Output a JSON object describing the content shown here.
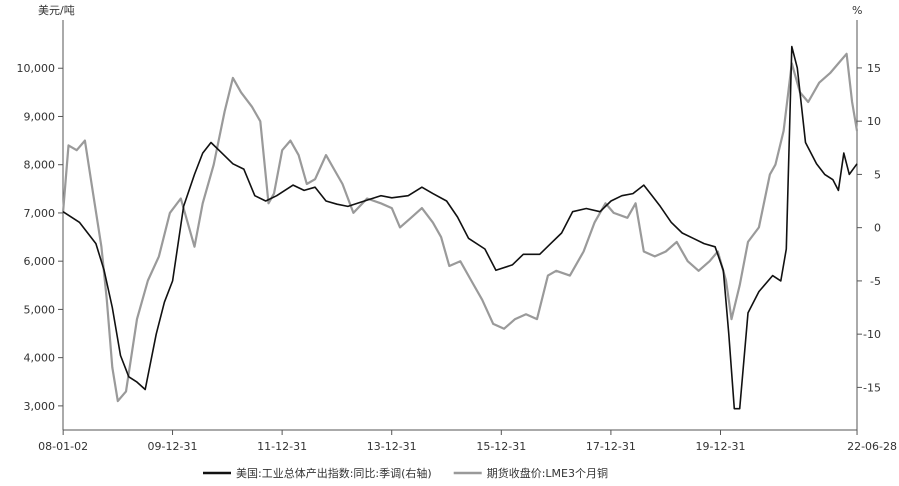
{
  "chart_data": {
    "type": "line",
    "left_axis_unit": "美元/吨",
    "right_axis_unit": "%",
    "x_tick_labels": [
      "08-01-02",
      "09-12-31",
      "11-12-31",
      "13-12-31",
      "15-12-31",
      "17-12-31",
      "19-12-31",
      "22-06-28"
    ],
    "x_range": [
      2008.0,
      2022.49
    ],
    "left_ticks": [
      "3,000",
      "4,000",
      "5,000",
      "6,000",
      "7,000",
      "8,000",
      "9,000",
      "10,000"
    ],
    "left_ylim": [
      2500,
      11000
    ],
    "right_ticks": [
      "-15",
      "-10",
      "-5",
      "0",
      "5",
      "10",
      "15"
    ],
    "right_ylim": [
      -19,
      19.5
    ],
    "grid": false,
    "legend_position": "bottom",
    "series": [
      {
        "name": "美国:工业总体产出指数:同比:季调(右轴)",
        "axis": "right",
        "color": "#111111",
        "points": [
          [
            2008.0,
            1.5
          ],
          [
            2008.3,
            0.5
          ],
          [
            2008.6,
            -1.5
          ],
          [
            2008.75,
            -4
          ],
          [
            2008.9,
            -7.5
          ],
          [
            2009.05,
            -12
          ],
          [
            2009.2,
            -14
          ],
          [
            2009.35,
            -14.5
          ],
          [
            2009.5,
            -15.2
          ],
          [
            2009.7,
            -10
          ],
          [
            2009.85,
            -7
          ],
          [
            2010.0,
            -5
          ],
          [
            2010.2,
            2
          ],
          [
            2010.4,
            5
          ],
          [
            2010.55,
            7
          ],
          [
            2010.7,
            8
          ],
          [
            2010.9,
            7
          ],
          [
            2011.1,
            6
          ],
          [
            2011.3,
            5.5
          ],
          [
            2011.5,
            3
          ],
          [
            2011.7,
            2.5
          ],
          [
            2011.9,
            3
          ],
          [
            2012.2,
            4
          ],
          [
            2012.4,
            3.5
          ],
          [
            2012.6,
            3.8
          ],
          [
            2012.8,
            2.5
          ],
          [
            2013.0,
            2.2
          ],
          [
            2013.2,
            2
          ],
          [
            2013.5,
            2.5
          ],
          [
            2013.8,
            3
          ],
          [
            2014.0,
            2.8
          ],
          [
            2014.3,
            3
          ],
          [
            2014.55,
            3.8
          ],
          [
            2014.75,
            3.2
          ],
          [
            2015.0,
            2.5
          ],
          [
            2015.2,
            1
          ],
          [
            2015.4,
            -1
          ],
          [
            2015.7,
            -2
          ],
          [
            2015.9,
            -4
          ],
          [
            2016.2,
            -3.5
          ],
          [
            2016.4,
            -2.5
          ],
          [
            2016.7,
            -2.5
          ],
          [
            2016.9,
            -1.5
          ],
          [
            2017.1,
            -0.5
          ],
          [
            2017.3,
            1.5
          ],
          [
            2017.55,
            1.8
          ],
          [
            2017.8,
            1.5
          ],
          [
            2018.0,
            2.5
          ],
          [
            2018.2,
            3
          ],
          [
            2018.4,
            3.2
          ],
          [
            2018.6,
            4
          ],
          [
            2018.75,
            3
          ],
          [
            2018.9,
            2
          ],
          [
            2019.1,
            0.5
          ],
          [
            2019.3,
            -0.5
          ],
          [
            2019.5,
            -1
          ],
          [
            2019.7,
            -1.5
          ],
          [
            2019.9,
            -1.8
          ],
          [
            2020.05,
            -4
          ],
          [
            2020.15,
            -10
          ],
          [
            2020.25,
            -17
          ],
          [
            2020.35,
            -17
          ],
          [
            2020.5,
            -8
          ],
          [
            2020.7,
            -6
          ],
          [
            2020.95,
            -4.5
          ],
          [
            2021.1,
            -5
          ],
          [
            2021.2,
            -2
          ],
          [
            2021.3,
            17
          ],
          [
            2021.4,
            15
          ],
          [
            2021.55,
            8
          ],
          [
            2021.75,
            6
          ],
          [
            2021.9,
            5
          ],
          [
            2022.05,
            4.5
          ],
          [
            2022.15,
            3.5
          ],
          [
            2022.25,
            7
          ],
          [
            2022.35,
            5
          ],
          [
            2022.49,
            6
          ]
        ]
      },
      {
        "name": "期货收盘价:LME3个月铜",
        "axis": "left",
        "color": "#9a9a9a",
        "points": [
          [
            2008.0,
            7000
          ],
          [
            2008.1,
            8400
          ],
          [
            2008.25,
            8300
          ],
          [
            2008.4,
            8500
          ],
          [
            2008.55,
            7400
          ],
          [
            2008.7,
            6300
          ],
          [
            2008.8,
            5200
          ],
          [
            2008.9,
            3800
          ],
          [
            2009.0,
            3100
          ],
          [
            2009.15,
            3300
          ],
          [
            2009.35,
            4800
          ],
          [
            2009.55,
            5600
          ],
          [
            2009.75,
            6100
          ],
          [
            2009.95,
            7000
          ],
          [
            2010.15,
            7300
          ],
          [
            2010.4,
            6300
          ],
          [
            2010.55,
            7200
          ],
          [
            2010.75,
            8000
          ],
          [
            2010.95,
            9100
          ],
          [
            2011.1,
            9800
          ],
          [
            2011.25,
            9500
          ],
          [
            2011.45,
            9200
          ],
          [
            2011.6,
            8900
          ],
          [
            2011.75,
            7200
          ],
          [
            2011.85,
            7400
          ],
          [
            2012.0,
            8300
          ],
          [
            2012.15,
            8500
          ],
          [
            2012.3,
            8200
          ],
          [
            2012.45,
            7600
          ],
          [
            2012.6,
            7700
          ],
          [
            2012.8,
            8200
          ],
          [
            2012.95,
            7900
          ],
          [
            2013.1,
            7600
          ],
          [
            2013.3,
            7000
          ],
          [
            2013.55,
            7300
          ],
          [
            2013.8,
            7200
          ],
          [
            2014.0,
            7100
          ],
          [
            2014.15,
            6700
          ],
          [
            2014.35,
            6900
          ],
          [
            2014.55,
            7100
          ],
          [
            2014.75,
            6800
          ],
          [
            2014.9,
            6500
          ],
          [
            2015.05,
            5900
          ],
          [
            2015.25,
            6000
          ],
          [
            2015.45,
            5600
          ],
          [
            2015.65,
            5200
          ],
          [
            2015.85,
            4700
          ],
          [
            2016.05,
            4600
          ],
          [
            2016.25,
            4800
          ],
          [
            2016.45,
            4900
          ],
          [
            2016.65,
            4800
          ],
          [
            2016.85,
            5700
          ],
          [
            2017.0,
            5800
          ],
          [
            2017.25,
            5700
          ],
          [
            2017.5,
            6200
          ],
          [
            2017.7,
            6800
          ],
          [
            2017.9,
            7200
          ],
          [
            2018.05,
            7000
          ],
          [
            2018.3,
            6900
          ],
          [
            2018.45,
            7200
          ],
          [
            2018.6,
            6200
          ],
          [
            2018.8,
            6100
          ],
          [
            2019.0,
            6200
          ],
          [
            2019.2,
            6400
          ],
          [
            2019.4,
            6000
          ],
          [
            2019.6,
            5800
          ],
          [
            2019.8,
            6000
          ],
          [
            2019.95,
            6200
          ],
          [
            2020.1,
            5600
          ],
          [
            2020.2,
            4800
          ],
          [
            2020.35,
            5500
          ],
          [
            2020.5,
            6400
          ],
          [
            2020.7,
            6700
          ],
          [
            2020.9,
            7800
          ],
          [
            2021.0,
            8000
          ],
          [
            2021.15,
            8700
          ],
          [
            2021.3,
            10100
          ],
          [
            2021.45,
            9500
          ],
          [
            2021.6,
            9300
          ],
          [
            2021.8,
            9700
          ],
          [
            2022.0,
            9900
          ],
          [
            2022.15,
            10100
          ],
          [
            2022.3,
            10300
          ],
          [
            2022.4,
            9300
          ],
          [
            2022.49,
            8700
          ]
        ]
      }
    ]
  }
}
